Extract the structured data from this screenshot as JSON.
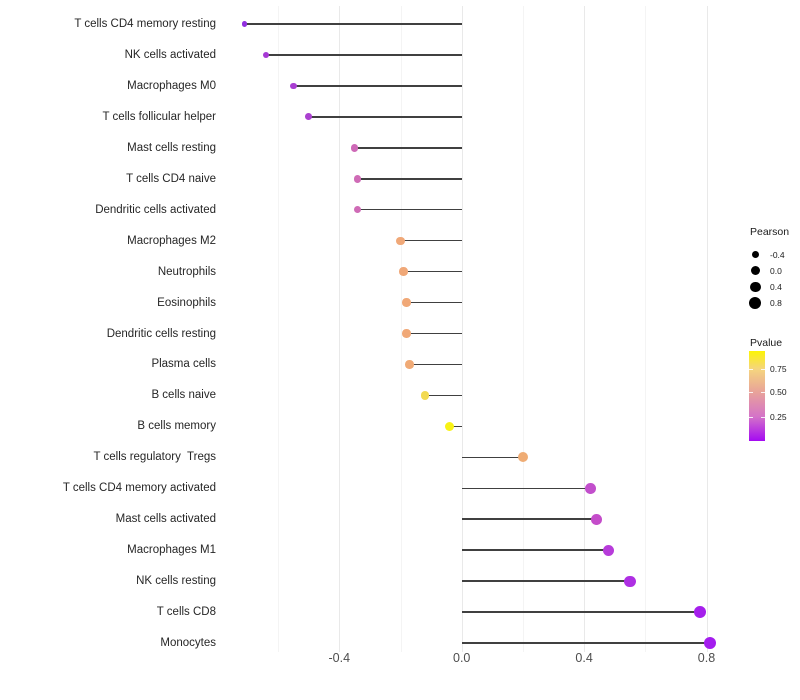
{
  "chart_data": {
    "type": "scatter",
    "subtype": "horizontal-lollipop",
    "title": "",
    "xlabel": "",
    "ylabel": "",
    "xlim": [
      -0.79,
      0.89
    ],
    "grid": "vertical-only",
    "x_ticks": [
      {
        "value": -0.4,
        "label": "-0.4"
      },
      {
        "value": 0.0,
        "label": "0.0"
      },
      {
        "value": 0.4,
        "label": "0.4"
      },
      {
        "value": 0.8,
        "label": "0.8"
      }
    ],
    "x_minor_grid": [
      -0.6,
      -0.2,
      0.2,
      0.6
    ],
    "points": [
      {
        "label": "T cells CD4 memory resting",
        "pearson": -0.71,
        "pvalue": 0.02,
        "color": "#9130DF"
      },
      {
        "label": "NK cells activated",
        "pearson": -0.64,
        "pvalue": 0.06,
        "color": "#A639D5"
      },
      {
        "label": "Macrophages M0",
        "pearson": -0.55,
        "pvalue": 0.08,
        "color": "#A93ED2"
      },
      {
        "label": "T cells follicular helper",
        "pearson": -0.5,
        "pvalue": 0.09,
        "color": "#AB41D0"
      },
      {
        "label": "Mast cells resting",
        "pearson": -0.35,
        "pvalue": 0.22,
        "color": "#CE69B7"
      },
      {
        "label": "T cells CD4 naive",
        "pearson": -0.34,
        "pvalue": 0.23,
        "color": "#CF6BB6"
      },
      {
        "label": "Dendritic cells activated",
        "pearson": -0.34,
        "pvalue": 0.23,
        "color": "#CF6BB6"
      },
      {
        "label": "Macrophages M2",
        "pearson": -0.2,
        "pvalue": 0.55,
        "color": "#F0A878"
      },
      {
        "label": "Neutrophils",
        "pearson": -0.19,
        "pvalue": 0.56,
        "color": "#F0A878"
      },
      {
        "label": "Eosinophils",
        "pearson": -0.18,
        "pvalue": 0.57,
        "color": "#F0A877"
      },
      {
        "label": "Dendritic cells resting",
        "pearson": -0.18,
        "pvalue": 0.57,
        "color": "#F0A877"
      },
      {
        "label": "Plasma cells",
        "pearson": -0.17,
        "pvalue": 0.58,
        "color": "#F0AA76"
      },
      {
        "label": "B cells naive",
        "pearson": -0.12,
        "pvalue": 0.78,
        "color": "#F2DA52"
      },
      {
        "label": "B cells memory",
        "pearson": -0.04,
        "pvalue": 0.92,
        "color": "#F8F215"
      },
      {
        "label": "T cells regulatory  Tregs",
        "pearson": 0.2,
        "pvalue": 0.56,
        "color": "#EFAC74"
      },
      {
        "label": "T cells CD4 memory activated",
        "pearson": 0.42,
        "pvalue": 0.17,
        "color": "#C24FCC"
      },
      {
        "label": "Mast cells activated",
        "pearson": 0.44,
        "pvalue": 0.16,
        "color": "#C44CCA"
      },
      {
        "label": "Macrophages M1",
        "pearson": 0.48,
        "pvalue": 0.11,
        "color": "#B73CDA"
      },
      {
        "label": "NK cells resting",
        "pearson": 0.55,
        "pvalue": 0.07,
        "color": "#AE2FE3"
      },
      {
        "label": "T cells CD8",
        "pearson": 0.78,
        "pvalue": 0.03,
        "color": "#A51FEC"
      },
      {
        "label": "Monocytes",
        "pearson": 0.81,
        "pvalue": 0.02,
        "color": "#A41DEE"
      }
    ],
    "size_legend": {
      "title": "Pearson",
      "dot_color": "#000000",
      "entries": [
        {
          "label": "-0.4",
          "value": -0.4
        },
        {
          "label": "0.0",
          "value": 0.0
        },
        {
          "label": "0.4",
          "value": 0.4
        },
        {
          "label": "0.8",
          "value": 0.8
        }
      ]
    },
    "color_legend": {
      "title": "Pvalue",
      "ticks": [
        {
          "label": "0.75",
          "pos": 0.2
        },
        {
          "label": "0.50",
          "pos": 0.46
        },
        {
          "label": "0.25",
          "pos": 0.73
        }
      ],
      "gradient": [
        {
          "color": "#FCF405",
          "pos": 0.0
        },
        {
          "color": "#F5D57E",
          "pos": 0.2
        },
        {
          "color": "#E8A29A",
          "pos": 0.46
        },
        {
          "color": "#D473C8",
          "pos": 0.73
        },
        {
          "color": "#A40AF2",
          "pos": 1.0
        }
      ]
    }
  },
  "colors": {
    "background": "#FFFFFF",
    "stem": "#404040",
    "grid_major": "#E9E9E9",
    "grid_minor": "#F4F4F4",
    "axis_text": "#4D4D4D",
    "label_text": "#262626"
  }
}
